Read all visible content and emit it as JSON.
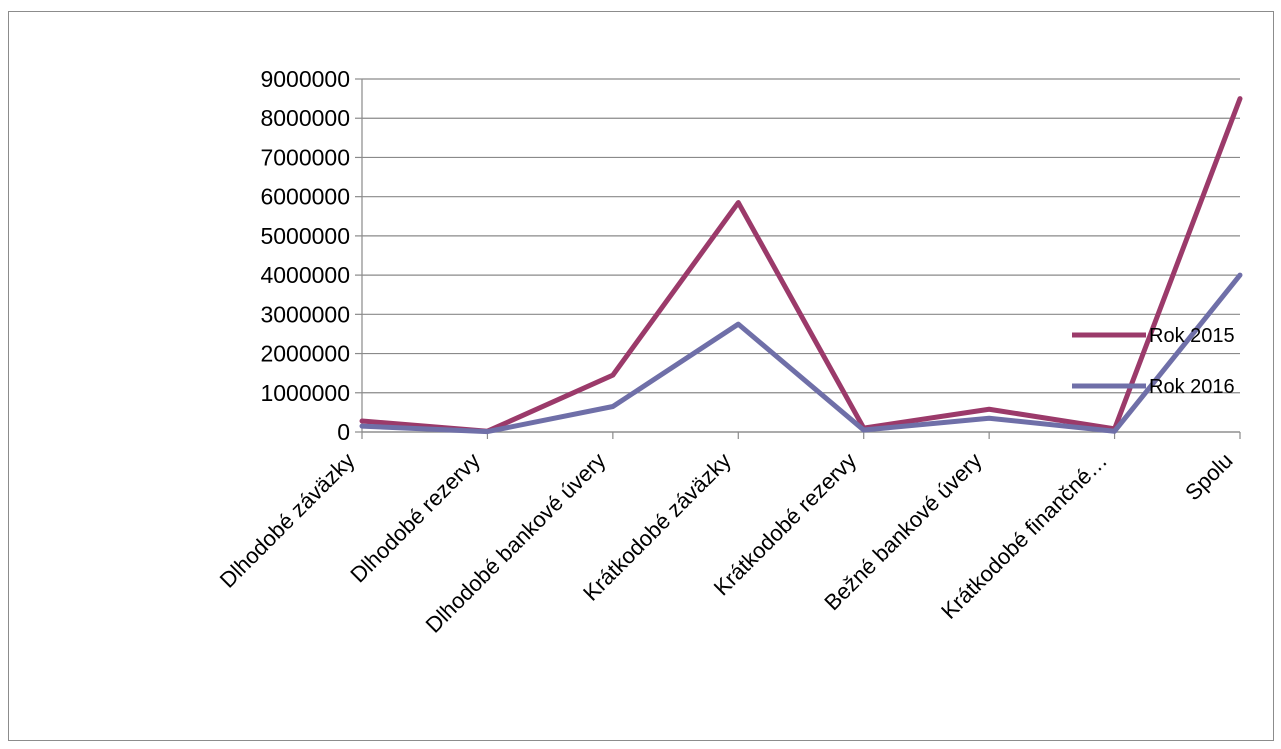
{
  "chart_data": {
    "type": "line",
    "categories": [
      "Dlhodobé záväzky",
      "Dlhodobé rezervy",
      "Dlhodobé bankové úvery",
      "Krátkodobé záväzky",
      "Krátkodobé rezervy",
      "Bežné bankové úvery",
      "Krátkodobé finančné…",
      "Spolu"
    ],
    "series": [
      {
        "name": "Rok 2015",
        "color": "#9b3a6a",
        "values": [
          280000,
          20000,
          1450000,
          5850000,
          100000,
          580000,
          80000,
          8500000
        ]
      },
      {
        "name": "Rok 2016",
        "color": "#6f6fa8",
        "values": [
          150000,
          10000,
          650000,
          2750000,
          50000,
          350000,
          20000,
          4000000
        ]
      }
    ],
    "y_ticks": [
      "0",
      "1000000",
      "2000000",
      "3000000",
      "4000000",
      "5000000",
      "6000000",
      "7000000",
      "8000000",
      "9000000"
    ],
    "ylim": [
      0,
      9000000
    ],
    "grid": true,
    "legend_position": "right",
    "title": "",
    "xlabel": "",
    "ylabel": ""
  }
}
